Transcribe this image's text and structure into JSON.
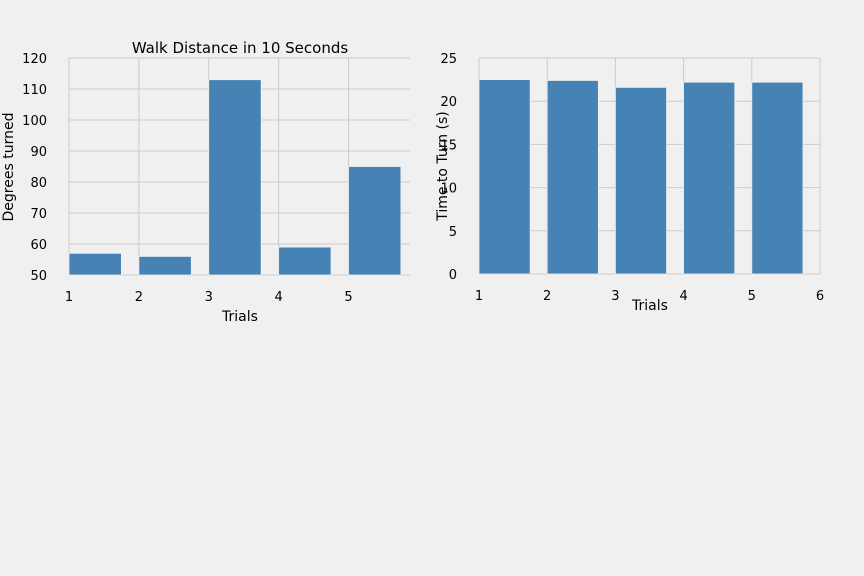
{
  "chart_data": [
    {
      "type": "bar",
      "title": "Walk Distance in 10 Seconds",
      "xlabel": "Trials",
      "ylabel": "Degrees turned",
      "x_ticks": [
        "1",
        "2",
        "3",
        "4",
        "5"
      ],
      "y_ticks": [
        "50",
        "60",
        "70",
        "80",
        "90",
        "100",
        "110",
        "120"
      ],
      "ylim": [
        50,
        120
      ],
      "xlim": [
        1,
        5.88
      ],
      "grid": true,
      "bars": [
        {
          "x": 1,
          "value": 57
        },
        {
          "x": 2,
          "value": 56
        },
        {
          "x": 3,
          "value": 113
        },
        {
          "x": 4,
          "value": 59
        },
        {
          "x": 5,
          "value": 85
        }
      ],
      "color": "#4682b4"
    },
    {
      "type": "bar",
      "title": "",
      "xlabel": "Trials",
      "ylabel": "Time to Turn (s)",
      "x_ticks": [
        "1",
        "2",
        "3",
        "4",
        "5",
        "6"
      ],
      "y_ticks": [
        "0",
        "5",
        "10",
        "15",
        "20",
        "25"
      ],
      "ylim": [
        0,
        25
      ],
      "xlim": [
        1,
        6
      ],
      "grid": true,
      "bars": [
        {
          "x": 1,
          "value": 22.5
        },
        {
          "x": 2,
          "value": 22.4
        },
        {
          "x": 3,
          "value": 21.6
        },
        {
          "x": 4,
          "value": 22.2
        },
        {
          "x": 5,
          "value": 22.2
        }
      ],
      "color": "#4682b4"
    }
  ]
}
